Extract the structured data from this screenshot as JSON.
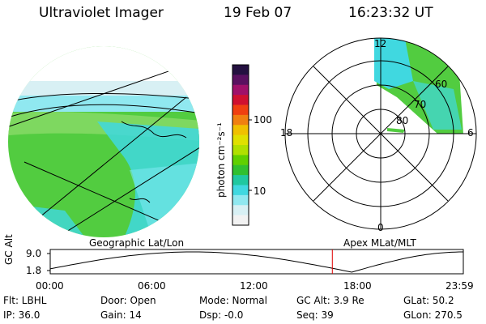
{
  "header": {
    "title": "Ultraviolet Imager",
    "date": "19 Feb 07",
    "time": "16:23:32 UT"
  },
  "colorbar": {
    "label": "photon cm⁻²s⁻¹",
    "ticks": [
      "100",
      "10"
    ],
    "colors": [
      "#241040",
      "#5a1060",
      "#a0106a",
      "#d01030",
      "#f04010",
      "#f08010",
      "#f0c000",
      "#e0e000",
      "#b0e000",
      "#60d000",
      "#30c030",
      "#20c8a0",
      "#40d8e0",
      "#90e8f0",
      "#d8f0f4",
      "#f2f2f2"
    ]
  },
  "geographic": {
    "label": "Geographic Lat/Lon"
  },
  "polar": {
    "label": "Apex  MLat/MLT",
    "mlt_labels": [
      "12",
      "18",
      "6",
      "0"
    ],
    "lat_labels": [
      "60",
      "70",
      "80"
    ]
  },
  "altitude_plot": {
    "ylabel": "GC Alt",
    "yticks": [
      "9.0",
      "1.8"
    ],
    "xticks": [
      "00:00",
      "06:00",
      "12:00",
      "18:00",
      "23:59"
    ],
    "current_time_hours": 16.39
  },
  "status": {
    "flt": "Flt: LBHL",
    "ip": "IP: 36.0",
    "door": "Door: Open",
    "gain": "Gain: 14",
    "mode": "Mode: Normal",
    "dsp": "Dsp:    -0.0",
    "gc_alt": "GC Alt: 3.9 Re",
    "seq": "Seq: 39",
    "glat": "GLat:  50.2",
    "glon": "GLon: 270.5"
  }
}
